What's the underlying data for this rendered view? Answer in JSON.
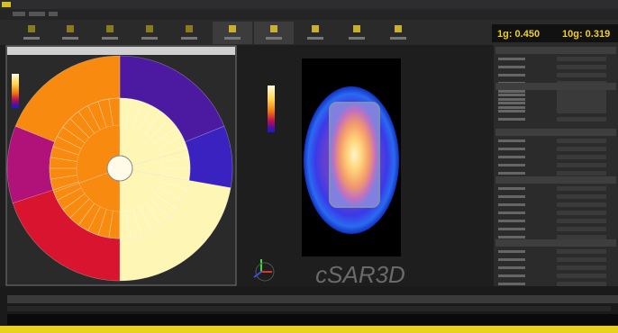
{
  "toolbar": {
    "sar_1g": "1g: 0.450",
    "sar_10g": "10g: 0.319"
  },
  "viewer": {
    "logo": "cSAR3D"
  }
}
